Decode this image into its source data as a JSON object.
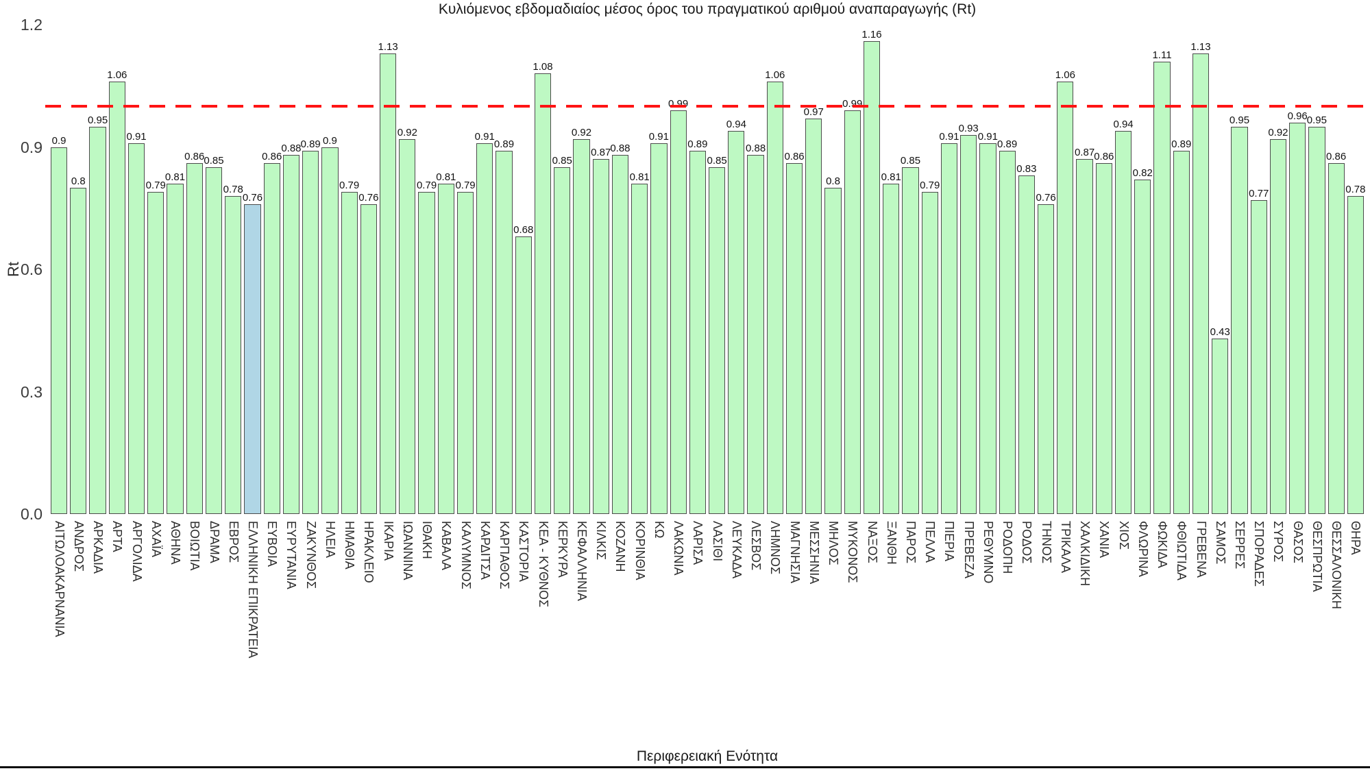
{
  "title": "Κυλιόμενος εβδομαδιαίος μέσος όρος του πραγματικού αριθμού αναπαραγωγής (Rt)",
  "ylabel": "Rt",
  "xlabel": "Περιφερειακή Ενότητα",
  "ytick_labels": [
    "1.2",
    "0.9",
    "0.6",
    "0.3",
    "0.0"
  ],
  "colors": {
    "bar_fill": "#bef9c3",
    "highlight_fill": "#b0d6e6",
    "bar_border": "#4b4b4b",
    "reference_line": "#ff1414"
  },
  "chart_data": {
    "type": "bar",
    "title": "Κυλιόμενος εβδομαδιαίος μέσος όρος του πραγματικού αριθμού αναπαραγωγής (Rt)",
    "xlabel": "Περιφερειακή Ενότητα",
    "ylabel": "Rt",
    "ylim": [
      0,
      1.2
    ],
    "yticks": [
      1.2,
      0.9,
      0.6,
      0.3,
      0.0
    ],
    "grid": false,
    "legend": "none",
    "reference_line": {
      "value": 1.0,
      "style": "dashed",
      "color": "#ff1414"
    },
    "highlight_category": "ΕΛΛΗΝΙΚΗ ΕΠΙΚΡΑΤΕΙΑ",
    "categories": [
      "ΑΙΤΩΛΟΑΚΑΡΝΑΝΙΑ",
      "ΑΝΔΡΟΣ",
      "ΑΡΚΑΔΙΑ",
      "ΑΡΤΑ",
      "ΑΡΓΟΛΙΔΑ",
      "ΑΧΑΪΑ",
      "ΑΘΗΝΑ",
      "ΒΟΙΩΤΙΑ",
      "ΔΡΑΜΑ",
      "ΕΒΡΟΣ",
      "ΕΛΛΗΝΙΚΗ ΕΠΙΚΡΑΤΕΙΑ",
      "ΕΥΒΟΙΑ",
      "ΕΥΡΥΤΑΝΙΑ",
      "ΖΑΚΥΝΘΟΣ",
      "ΗΛΕΙΑ",
      "ΗΜΑΘΙΑ",
      "ΗΡΑΚΛΕΙΟ",
      "ΙΚΑΡΙΑ",
      "ΙΩΑΝΝΙΝΑ",
      "ΙΘΑΚΗ",
      "ΚΑΒΑΛΑ",
      "ΚΑΛΥΜΝΟΣ",
      "ΚΑΡΔΙΤΣΑ",
      "ΚΑΡΠΑΘΟΣ",
      "ΚΑΣΤΟΡΙΑ",
      "ΚΕΑ - ΚΥΘΝΟΣ",
      "ΚΕΡΚΥΡΑ",
      "ΚΕΦΑΛΛΗΝΙΑ",
      "ΚΙΛΚΙΣ",
      "ΚΟΖΑΝΗ",
      "ΚΟΡΙΝΘΙΑ",
      "ΚΩ",
      "ΛΑΚΩΝΙΑ",
      "ΛΑΡΙΣΑ",
      "ΛΑΣΙΘΙ",
      "ΛΕΥΚΑΔΑ",
      "ΛΕΣΒΟΣ",
      "ΛΗΜΝΟΣ",
      "ΜΑΓΝΗΣΙΑ",
      "ΜΕΣΣΗΝΙΑ",
      "ΜΗΛΟΣ",
      "ΜΥΚΟΝΟΣ",
      "ΝΑΞΟΣ",
      "ΞΑΝΘΗ",
      "ΠΑΡΟΣ",
      "ΠΕΛΛΑ",
      "ΠΙΕΡΙΑ",
      "ΠΡΕΒΕΖΑ",
      "ΡΕΘΥΜΝΟ",
      "ΡΟΔΟΠΗ",
      "ΡΟΔΟΣ",
      "ΤΗΝΟΣ",
      "ΤΡΙΚΑΛΑ",
      "ΧΑΛΚΙΔΙΚΗ",
      "ΧΑΝΙΑ",
      "ΧΙΟΣ",
      "ΦΛΩΡΙΝΑ",
      "ΦΩΚΙΔΑ",
      "ΦΘΙΩΤΙΔΑ",
      "ΓΡΕΒΕΝΑ",
      "ΣΑΜΟΣ",
      "ΣΕΡΡΕΣ",
      "ΣΠΟΡΑΔΕΣ",
      "ΣΥΡΟΣ",
      "ΘΑΣΟΣ",
      "ΘΕΣΠΡΩΤΙΑ",
      "ΘΕΣΣΑΛΟΝΙΚΗ",
      "ΘΗΡΑ"
    ],
    "values": [
      0.9,
      0.8,
      0.95,
      1.06,
      0.91,
      0.79,
      0.81,
      0.86,
      0.85,
      0.78,
      0.76,
      0.86,
      0.88,
      0.89,
      0.9,
      0.79,
      0.76,
      1.13,
      0.92,
      0.79,
      0.81,
      0.79,
      0.91,
      0.89,
      0.68,
      1.08,
      0.85,
      0.92,
      0.87,
      0.88,
      0.81,
      0.91,
      0.99,
      0.89,
      0.85,
      0.94,
      0.88,
      1.06,
      0.86,
      0.97,
      0.8,
      0.99,
      1.16,
      0.81,
      0.85,
      0.79,
      0.91,
      0.93,
      0.91,
      0.89,
      0.83,
      0.76,
      1.06,
      0.87,
      0.86,
      0.94,
      0.82,
      1.11,
      0.89,
      1.13,
      0.43,
      0.95,
      0.77,
      0.92,
      0.96,
      0.95,
      0.86,
      0.78
    ]
  }
}
